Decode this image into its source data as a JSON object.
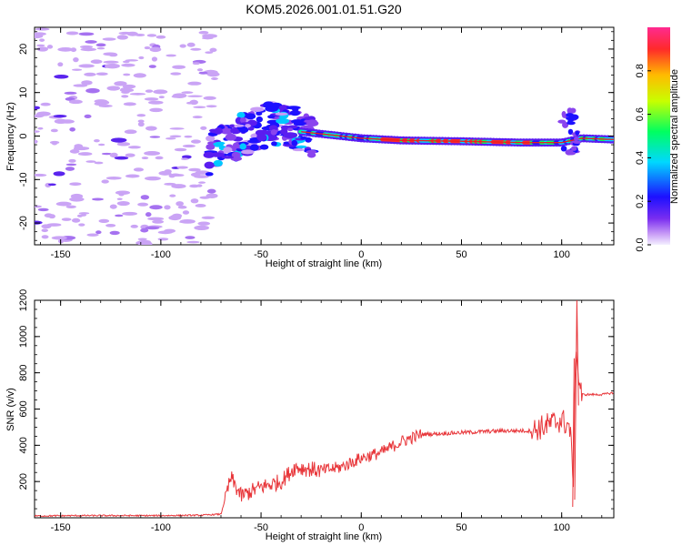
{
  "chart_data": [
    {
      "type": "heatmap",
      "title": "KOM5.2026.001.01.51.G20",
      "xlabel": "Height of straight line (km)",
      "ylabel": "Frequency (Hz)",
      "xlim": [
        -163,
        126
      ],
      "ylim": [
        -25,
        25
      ],
      "xticks": [
        -150,
        -100,
        -50,
        0,
        50,
        100
      ],
      "yticks": [
        -20,
        -10,
        0,
        10,
        20
      ],
      "colorbar": {
        "label": "Normalized spectral amplitude",
        "range": [
          0,
          1
        ],
        "ticks": [
          0.0,
          0.2,
          0.4,
          0.6,
          0.8
        ]
      },
      "trace": {
        "description_points_x": [
          -75,
          -70,
          -60,
          -50,
          -40,
          -30,
          -20,
          0,
          20,
          50,
          80,
          100,
          110,
          126
        ],
        "description_points_y": [
          -6,
          -2,
          0,
          2,
          3,
          1,
          0.5,
          -0.5,
          -1,
          -1.2,
          -1.5,
          -1.5,
          -0.5,
          -0.8
        ]
      }
    },
    {
      "type": "line",
      "title": "",
      "xlabel": "Height of straight line (km)",
      "ylabel": "SNR (v/v)",
      "xlim": [
        -163,
        126
      ],
      "ylim": [
        0,
        1200
      ],
      "xticks": [
        -150,
        -100,
        -50,
        0,
        50,
        100
      ],
      "yticks": [
        200,
        400,
        600,
        800,
        1000,
        1200
      ],
      "line_color": "#e8363a",
      "series": [
        {
          "name": "SNR",
          "x": [
            -163,
            -140,
            -100,
            -80,
            -70,
            -65,
            -60,
            -50,
            -40,
            -33,
            -20,
            -10,
            0,
            10,
            20,
            30,
            50,
            70,
            85,
            95,
            100,
            104,
            106,
            107,
            108,
            110,
            115,
            120,
            126
          ],
          "y": [
            10,
            12,
            12,
            14,
            20,
            220,
            120,
            170,
            200,
            280,
            260,
            280,
            330,
            360,
            420,
            460,
            470,
            480,
            480,
            520,
            540,
            500,
            200,
            1020,
            800,
            680,
            680,
            680,
            690
          ]
        }
      ]
    }
  ]
}
